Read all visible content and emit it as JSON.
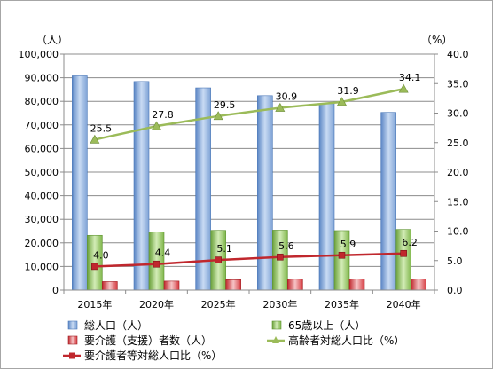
{
  "chart_data": {
    "type": "bar",
    "categories": [
      "2015年",
      "2020年",
      "2025年",
      "2030年",
      "2035年",
      "2040年"
    ],
    "y_left": {
      "unit_label": "（人）",
      "range": [
        0,
        100000
      ],
      "ticks": [
        "0",
        "10,000",
        "20,000",
        "30,000",
        "40,000",
        "50,000",
        "60,000",
        "70,000",
        "80,000",
        "90,000",
        "100,000"
      ]
    },
    "y_right": {
      "unit_label": "（%）",
      "range": [
        0,
        40
      ],
      "ticks": [
        "0.0",
        "5.0",
        "10.0",
        "15.0",
        "20.0",
        "25.0",
        "30.0",
        "35.0",
        "40.0"
      ]
    },
    "grid": true,
    "legend_position": "bottom",
    "series": [
      {
        "name": "総人口（人）",
        "type": "bar",
        "axis": "left",
        "color": "#7fa7dc",
        "values": [
          90800,
          88400,
          85700,
          82400,
          79000,
          75300
        ]
      },
      {
        "name": "65歳以上（人）",
        "type": "bar",
        "axis": "left",
        "color": "#8fc45c",
        "values": [
          23200,
          24600,
          25300,
          25400,
          25200,
          25700
        ]
      },
      {
        "name": "要介護（支援）者数（人）",
        "type": "bar",
        "axis": "left",
        "color": "#e0474c",
        "values": [
          3600,
          3800,
          4400,
          4600,
          4700,
          4700
        ]
      },
      {
        "name": "高齢者対総人口比（%）",
        "type": "line",
        "axis": "right",
        "color": "#9bbb59",
        "marker": "triangle",
        "values": [
          25.5,
          27.8,
          29.5,
          30.9,
          31.9,
          34.1
        ],
        "labels": [
          "25.5",
          "27.8",
          "29.5",
          "30.9",
          "31.9",
          "34.1"
        ]
      },
      {
        "name": "要介護者等対総人口比（%）",
        "type": "line",
        "axis": "right",
        "color": "#c0272d",
        "marker": "square",
        "values": [
          4.0,
          4.4,
          5.1,
          5.6,
          5.9,
          6.2
        ],
        "labels": [
          "4.0",
          "4.4",
          "5.1",
          "5.6",
          "5.9",
          "6.2"
        ]
      }
    ]
  }
}
